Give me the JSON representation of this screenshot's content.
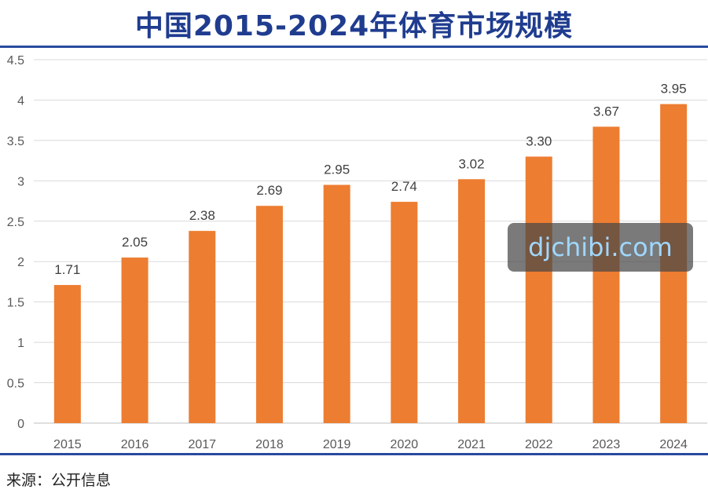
{
  "title": "中国2015-2024年体育市场规模",
  "source": "来源：公开信息",
  "watermark": "djchibi.com",
  "colors": {
    "bar": "#ED7D31",
    "accent": "#2a4a9e",
    "title": "#1f3c8f",
    "grid": "#d9d9d9"
  },
  "chart_data": {
    "type": "bar",
    "title": "中国2015-2024年体育市场规模",
    "categories": [
      "2015",
      "2016",
      "2017",
      "2018",
      "2019",
      "2020",
      "2021",
      "2022",
      "2023",
      "2024"
    ],
    "values": [
      1.71,
      2.05,
      2.38,
      2.69,
      2.95,
      2.74,
      3.02,
      3.3,
      3.67,
      3.95
    ],
    "data_labels": [
      "1.71",
      "2.05",
      "2.38",
      "2.69",
      "2.95",
      "2.74",
      "3.02",
      "3.30",
      "3.67",
      "3.95"
    ],
    "yticks": [
      "0",
      "0.5",
      "1",
      "1.5",
      "2",
      "2.5",
      "3",
      "3.5",
      "4",
      "4.5"
    ],
    "ylim": [
      0,
      4.5
    ],
    "xlabel": "",
    "ylabel": "",
    "grid": true,
    "legend": "none"
  }
}
